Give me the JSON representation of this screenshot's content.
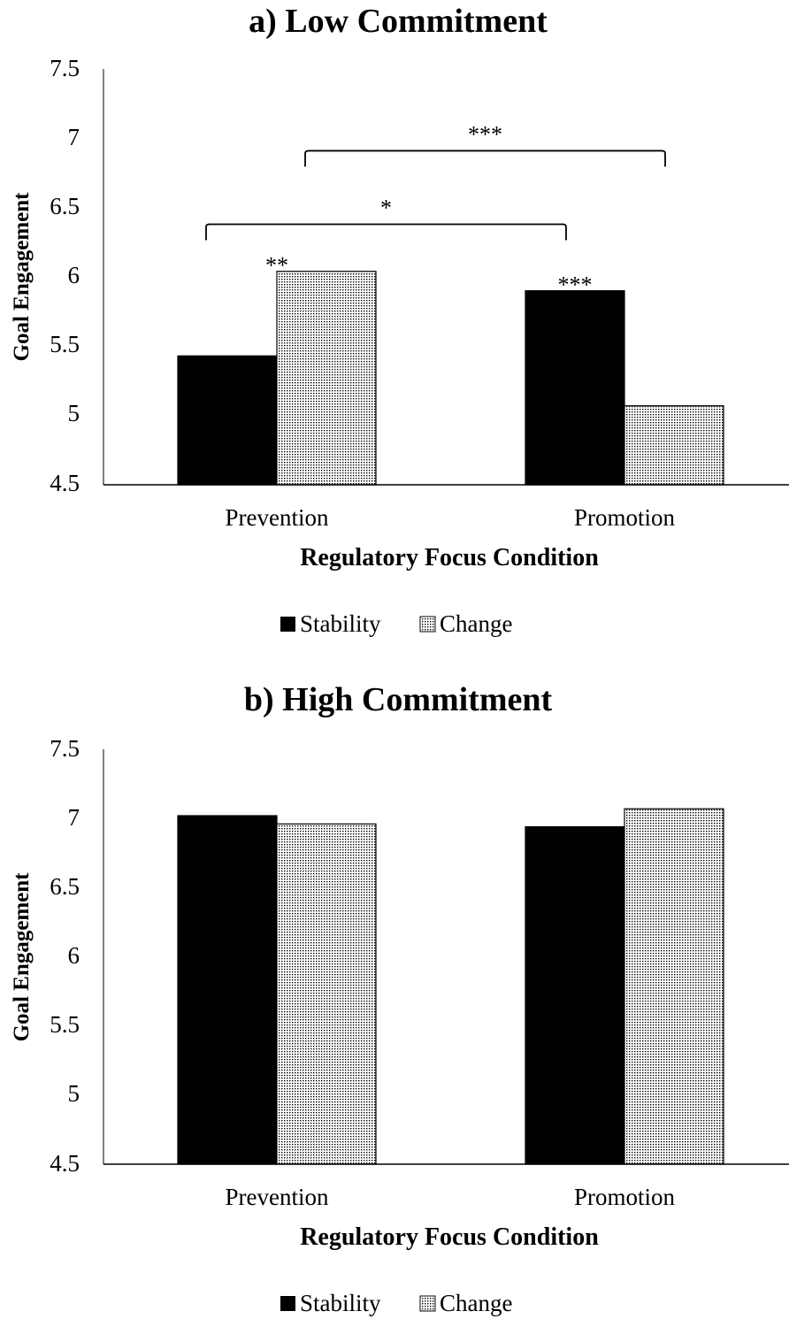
{
  "colors": {
    "stability": "#000000",
    "change_pattern": "#ffffff",
    "change_dots": "#000000",
    "axis": "#000000"
  },
  "chart_data": [
    {
      "type": "bar",
      "title": "a) Low Commitment",
      "xlabel": "Regulatory Focus Condition",
      "ylabel": "Goal Engagement",
      "categories": [
        "Prevention",
        "Promotion"
      ],
      "series": [
        {
          "name": "Stability",
          "values": [
            5.43,
            5.9
          ]
        },
        {
          "name": "Change",
          "values": [
            6.04,
            5.07
          ]
        }
      ],
      "ylim": [
        4.5,
        7.5
      ],
      "yticks": [
        "4.5",
        "5",
        "5.5",
        "6",
        "6.5",
        "7",
        "7.5"
      ],
      "grid": false,
      "legend": "bottom-center",
      "annotations": [
        {
          "text": "**",
          "category": 0,
          "series": 1
        },
        {
          "text": "***",
          "category": 1,
          "series": 0
        }
      ],
      "brackets": [
        {
          "text": "*",
          "from": {
            "category": 0,
            "series": 0
          },
          "to": {
            "category": 1,
            "series": 0
          },
          "level": 6.38
        },
        {
          "text": "***",
          "from": {
            "category": 0,
            "series": 1
          },
          "to": {
            "category": 1,
            "series": 1
          },
          "level": 6.91
        }
      ]
    },
    {
      "type": "bar",
      "title": "b) High Commitment",
      "xlabel": "Regulatory Focus Condition",
      "ylabel": "Goal Engagement",
      "categories": [
        "Prevention",
        "Promotion"
      ],
      "series": [
        {
          "name": "Stability",
          "values": [
            7.02,
            6.94
          ]
        },
        {
          "name": "Change",
          "values": [
            6.96,
            7.07
          ]
        }
      ],
      "ylim": [
        4.5,
        7.5
      ],
      "yticks": [
        "4.5",
        "5",
        "5.5",
        "6",
        "6.5",
        "7",
        "7.5"
      ],
      "grid": false,
      "legend": "bottom-center",
      "annotations": [],
      "brackets": []
    }
  ]
}
